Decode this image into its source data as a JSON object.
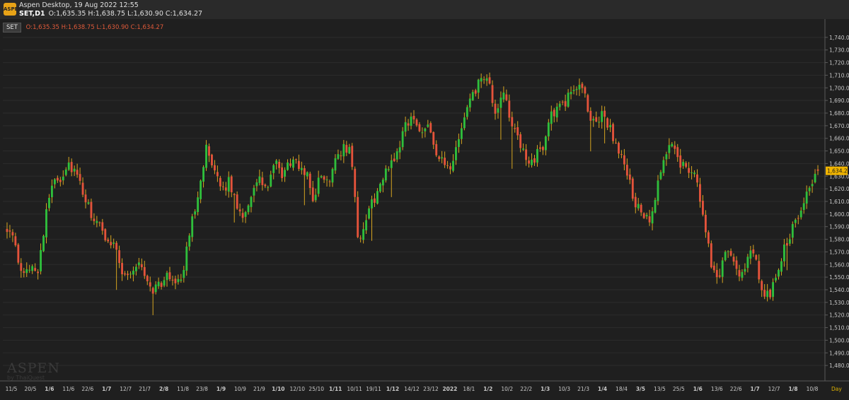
{
  "window": {
    "app_title": "Aspen Desktop, 19 Aug 2022 12:55",
    "symbol_tf": "SET,D1",
    "ohlc": "O:1,635.35 H:1,638.75 L:1,630.90 C:1,634.27",
    "logo_text": "ASPEN"
  },
  "legend": {
    "symbol": "SET",
    "values": "O:1,635.35 H:1,638.75 L:1,630.90 C:1,634.27"
  },
  "watermark": {
    "brand": "ASPEN",
    "sub": "by ThaiQuest"
  },
  "colors": {
    "up": "#2fbf3c",
    "down": "#e4533b",
    "wick": "#d6a520",
    "background": "#1f1f1f",
    "grid": "#2c2c2c",
    "price_tag": "#f0b400"
  },
  "chart_data": {
    "type": "candlestick",
    "symbol": "SET",
    "timeframe": "Day",
    "ylim": [
      1470,
      1750
    ],
    "y_ticks": [
      "1,740.00",
      "1,730.00",
      "1,720.00",
      "1,710.00",
      "1,700.00",
      "1,690.00",
      "1,680.00",
      "1,670.00",
      "1,660.00",
      "1,650.00",
      "1,640.00",
      "1,630.00",
      "1,620.00",
      "1,610.00",
      "1,600.00",
      "1,590.00",
      "1,580.00",
      "1,570.00",
      "1,560.00",
      "1,550.00",
      "1,540.00",
      "1,530.00",
      "1,520.00",
      "1,510.00",
      "1,500.00",
      "1,490.00",
      "1,480.00"
    ],
    "x_tick_labels": [
      "11/5",
      "20/5",
      "1/6",
      "11/6",
      "22/6",
      "1/7",
      "12/7",
      "21/7",
      "2/8",
      "11/8",
      "23/8",
      "1/9",
      "10/9",
      "21/9",
      "1/10",
      "12/10",
      "25/10",
      "1/11",
      "10/11",
      "19/11",
      "1/12",
      "14/12",
      "23/12",
      "2022",
      "18/1",
      "1/2",
      "10/2",
      "22/2",
      "1/3",
      "10/3",
      "21/3",
      "1/4",
      "18/4",
      "3/5",
      "13/5",
      "25/5",
      "1/6",
      "13/6",
      "22/6",
      "1/7",
      "12/7",
      "1/8",
      "10/8"
    ],
    "x_tick_bold": [
      "1/6",
      "1/7",
      "2/8",
      "1/9",
      "1/10",
      "1/11",
      "1/12",
      "2022",
      "1/2",
      "1/3",
      "1/4",
      "3/5",
      "1/6",
      "1/7",
      "1/8"
    ],
    "x_axis_label": "Day",
    "last_price": "1,634.27",
    "last": {
      "open": 1635.35,
      "high": 1638.75,
      "low": 1630.9,
      "close": 1634.27
    },
    "path_close": [
      1590,
      1575,
      1548,
      1560,
      1556,
      1595,
      1630,
      1628,
      1640,
      1632,
      1614,
      1600,
      1590,
      1580,
      1578,
      1555,
      1550,
      1562,
      1552,
      1540,
      1545,
      1550,
      1548,
      1552,
      1590,
      1618,
      1652,
      1632,
      1620,
      1625,
      1608,
      1598,
      1618,
      1626,
      1620,
      1640,
      1630,
      1642,
      1638,
      1635,
      1612,
      1630,
      1625,
      1648,
      1652,
      1650,
      1570,
      1600,
      1612,
      1625,
      1640,
      1648,
      1672,
      1676,
      1664,
      1675,
      1650,
      1640,
      1632,
      1660,
      1680,
      1695,
      1708,
      1702,
      1675,
      1700,
      1670,
      1655,
      1640,
      1645,
      1652,
      1680,
      1682,
      1688,
      1700,
      1705,
      1680,
      1672,
      1680,
      1665,
      1648,
      1635,
      1610,
      1600,
      1592,
      1620,
      1645,
      1658,
      1640,
      1638,
      1628,
      1600,
      1562,
      1550,
      1575,
      1565,
      1548,
      1570,
      1560,
      1532,
      1540,
      1562,
      1580,
      1592,
      1610,
      1625,
      1634.27
    ]
  }
}
